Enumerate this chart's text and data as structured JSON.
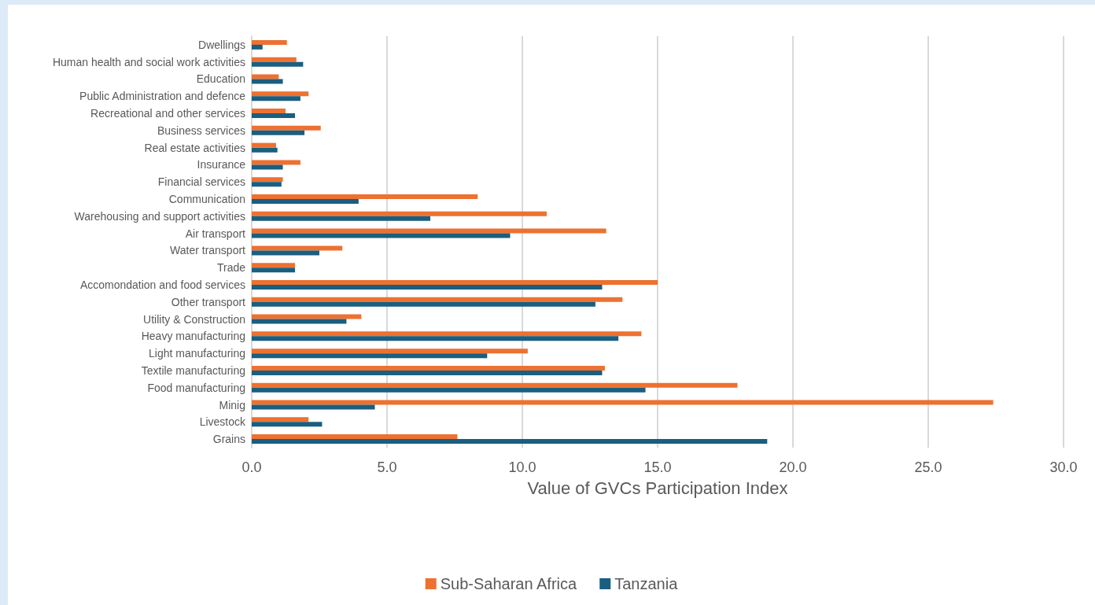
{
  "chart_data": {
    "type": "bar",
    "orientation": "horizontal",
    "xlabel": "Value of GVCs Participation Index",
    "categories": [
      "Dwellings",
      "Human health and social work activities",
      "Education",
      "Public Administration and defence",
      "Recreational and other services",
      "Business services",
      "Real estate activities",
      "Insurance",
      "Financial services",
      "Communication",
      "Warehousing and support activities",
      "Air transport",
      "Water transport",
      "Trade",
      "Accomondation and food services",
      "Other transport",
      "Utility & Construction",
      "Heavy manufacturing",
      "Light manufacturing",
      "Textile manufacturing",
      "Food manufacturing",
      "Minig",
      "Livestock",
      "Grains"
    ],
    "series": [
      {
        "name": "Sub-Saharan Africa",
        "color": "#ed7131",
        "values": [
          1.3,
          1.65,
          1.0,
          2.1,
          1.25,
          2.55,
          0.9,
          1.8,
          1.15,
          8.35,
          10.9,
          13.1,
          3.35,
          1.6,
          15.0,
          13.7,
          4.05,
          14.4,
          10.2,
          13.05,
          17.95,
          27.4,
          2.1,
          7.6
        ]
      },
      {
        "name": "Tanzania",
        "color": "#1a5e80",
        "values": [
          0.4,
          1.9,
          1.15,
          1.8,
          1.6,
          1.95,
          0.95,
          1.15,
          1.1,
          3.95,
          6.6,
          9.55,
          2.5,
          1.6,
          12.95,
          12.7,
          3.5,
          13.55,
          8.7,
          12.95,
          14.55,
          4.55,
          2.6,
          19.05
        ]
      }
    ],
    "xlim": [
      0,
      30
    ],
    "xticks": [
      {
        "value": 0,
        "label": "0.0"
      },
      {
        "value": 5,
        "label": "5.0"
      },
      {
        "value": 10,
        "label": "10.0"
      },
      {
        "value": 15,
        "label": "15.0"
      },
      {
        "value": 20,
        "label": "20.0"
      },
      {
        "value": 25,
        "label": "25.0"
      },
      {
        "value": 30,
        "label": "30.0"
      }
    ],
    "grid": "x",
    "legend": "bottom"
  }
}
